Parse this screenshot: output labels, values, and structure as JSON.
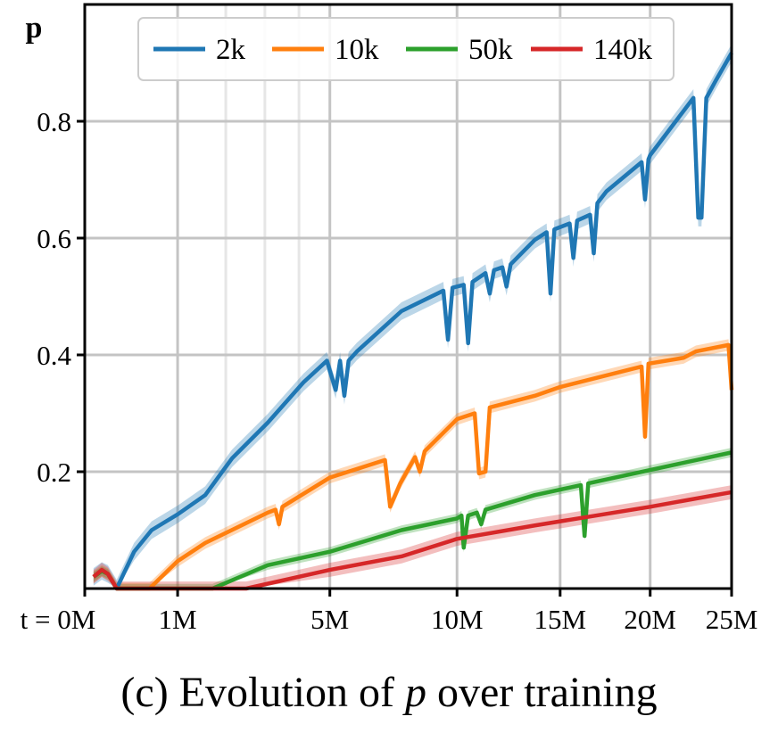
{
  "chart_data": {
    "type": "line",
    "ylabel": "p",
    "xlabel_prefix": "t = ",
    "caption": {
      "prefix": "(c) Evolution of ",
      "var": "p",
      "suffix": " over training"
    },
    "x_scale": "power (~0.6)",
    "xlim": [
      0,
      25
    ],
    "ylim": [
      0,
      1.0
    ],
    "x_ticks": [
      {
        "v": 0,
        "label": "0M"
      },
      {
        "v": 1,
        "label": "1M"
      },
      {
        "v": 5,
        "label": "5M"
      },
      {
        "v": 10,
        "label": "10M"
      },
      {
        "v": 15,
        "label": "15M"
      },
      {
        "v": 20,
        "label": "20M"
      },
      {
        "v": 25,
        "label": "25M"
      }
    ],
    "x_minor_grid": [
      2,
      3,
      4
    ],
    "y_ticks": [
      {
        "v": 0.2,
        "label": "0.2"
      },
      {
        "v": 0.4,
        "label": "0.4"
      },
      {
        "v": 0.6,
        "label": "0.6"
      },
      {
        "v": 0.8,
        "label": "0.8"
      }
    ],
    "grid": true,
    "legend": "top-center",
    "series": [
      {
        "name": "2k",
        "color": "#1f77b4",
        "band": 0.015,
        "x": [
          0.02,
          0.06,
          0.1,
          0.17,
          0.35,
          0.58,
          1.0,
          1.54,
          2.15,
          3.08,
          4.14,
          4.9,
          5.2,
          5.35,
          5.5,
          5.65,
          5.95,
          7.65,
          9.4,
          9.6,
          9.8,
          10.3,
          10.5,
          10.7,
          11.3,
          11.5,
          11.7,
          12.1,
          12.3,
          12.5,
          13.7,
          14.3,
          14.5,
          14.7,
          15.5,
          15.7,
          15.9,
          16.6,
          16.8,
          17.0,
          17.5,
          19.5,
          19.7,
          19.9,
          20,
          22.6,
          22.9,
          23.1,
          23.4,
          24,
          25
        ],
        "y": [
          0.02,
          0.03,
          0.025,
          0.0,
          0.063,
          0.1,
          0.127,
          0.16,
          0.223,
          0.284,
          0.353,
          0.39,
          0.34,
          0.39,
          0.33,
          0.39,
          0.406,
          0.475,
          0.51,
          0.426,
          0.515,
          0.52,
          0.42,
          0.525,
          0.54,
          0.505,
          0.545,
          0.55,
          0.517,
          0.555,
          0.597,
          0.61,
          0.505,
          0.615,
          0.625,
          0.566,
          0.63,
          0.64,
          0.574,
          0.66,
          0.68,
          0.73,
          0.666,
          0.735,
          0.742,
          0.84,
          0.635,
          0.635,
          0.84,
          0.87,
          0.917
        ]
      },
      {
        "name": "10k",
        "color": "#ff7f0e",
        "band": 0.01,
        "x": [
          0.02,
          0.06,
          0.1,
          0.17,
          0.55,
          1.0,
          1.54,
          3.08,
          3.3,
          3.4,
          3.5,
          5.0,
          7.0,
          7.2,
          7.4,
          7.6,
          8.2,
          8.4,
          8.6,
          10.0,
          10.8,
          11.0,
          11.3,
          11.5,
          13.7,
          15.0,
          19.5,
          19.7,
          19.9,
          22.0,
          22.75,
          24.8,
          25
        ],
        "y": [
          0.02,
          0.03,
          0.025,
          0.0,
          0.0,
          0.047,
          0.078,
          0.13,
          0.135,
          0.11,
          0.14,
          0.19,
          0.22,
          0.14,
          0.16,
          0.18,
          0.225,
          0.2,
          0.235,
          0.29,
          0.3,
          0.197,
          0.2,
          0.31,
          0.33,
          0.345,
          0.38,
          0.26,
          0.385,
          0.395,
          0.406,
          0.417,
          0.34
        ]
      },
      {
        "name": "50k",
        "color": "#2ca02c",
        "band": 0.008,
        "x": [
          0.02,
          0.06,
          0.1,
          0.17,
          1.7,
          3.08,
          5.0,
          7.65,
          10.0,
          10.2,
          10.3,
          10.5,
          10.9,
          11.1,
          11.3,
          13.7,
          16.1,
          16.3,
          16.5,
          20.0,
          25
        ],
        "y": [
          0.02,
          0.03,
          0.025,
          0.0,
          0.0,
          0.04,
          0.063,
          0.1,
          0.12,
          0.125,
          0.07,
          0.125,
          0.13,
          0.11,
          0.135,
          0.16,
          0.177,
          0.09,
          0.18,
          0.203,
          0.233
        ]
      },
      {
        "name": "140k",
        "color": "#d62728",
        "band": 0.012,
        "x": [
          0.02,
          0.06,
          0.1,
          0.17,
          2.5,
          5.0,
          7.65,
          10.0,
          13.7,
          20.0,
          25
        ],
        "y": [
          0.02,
          0.032,
          0.025,
          0.0,
          0.0,
          0.032,
          0.055,
          0.085,
          0.108,
          0.14,
          0.165
        ]
      }
    ]
  }
}
